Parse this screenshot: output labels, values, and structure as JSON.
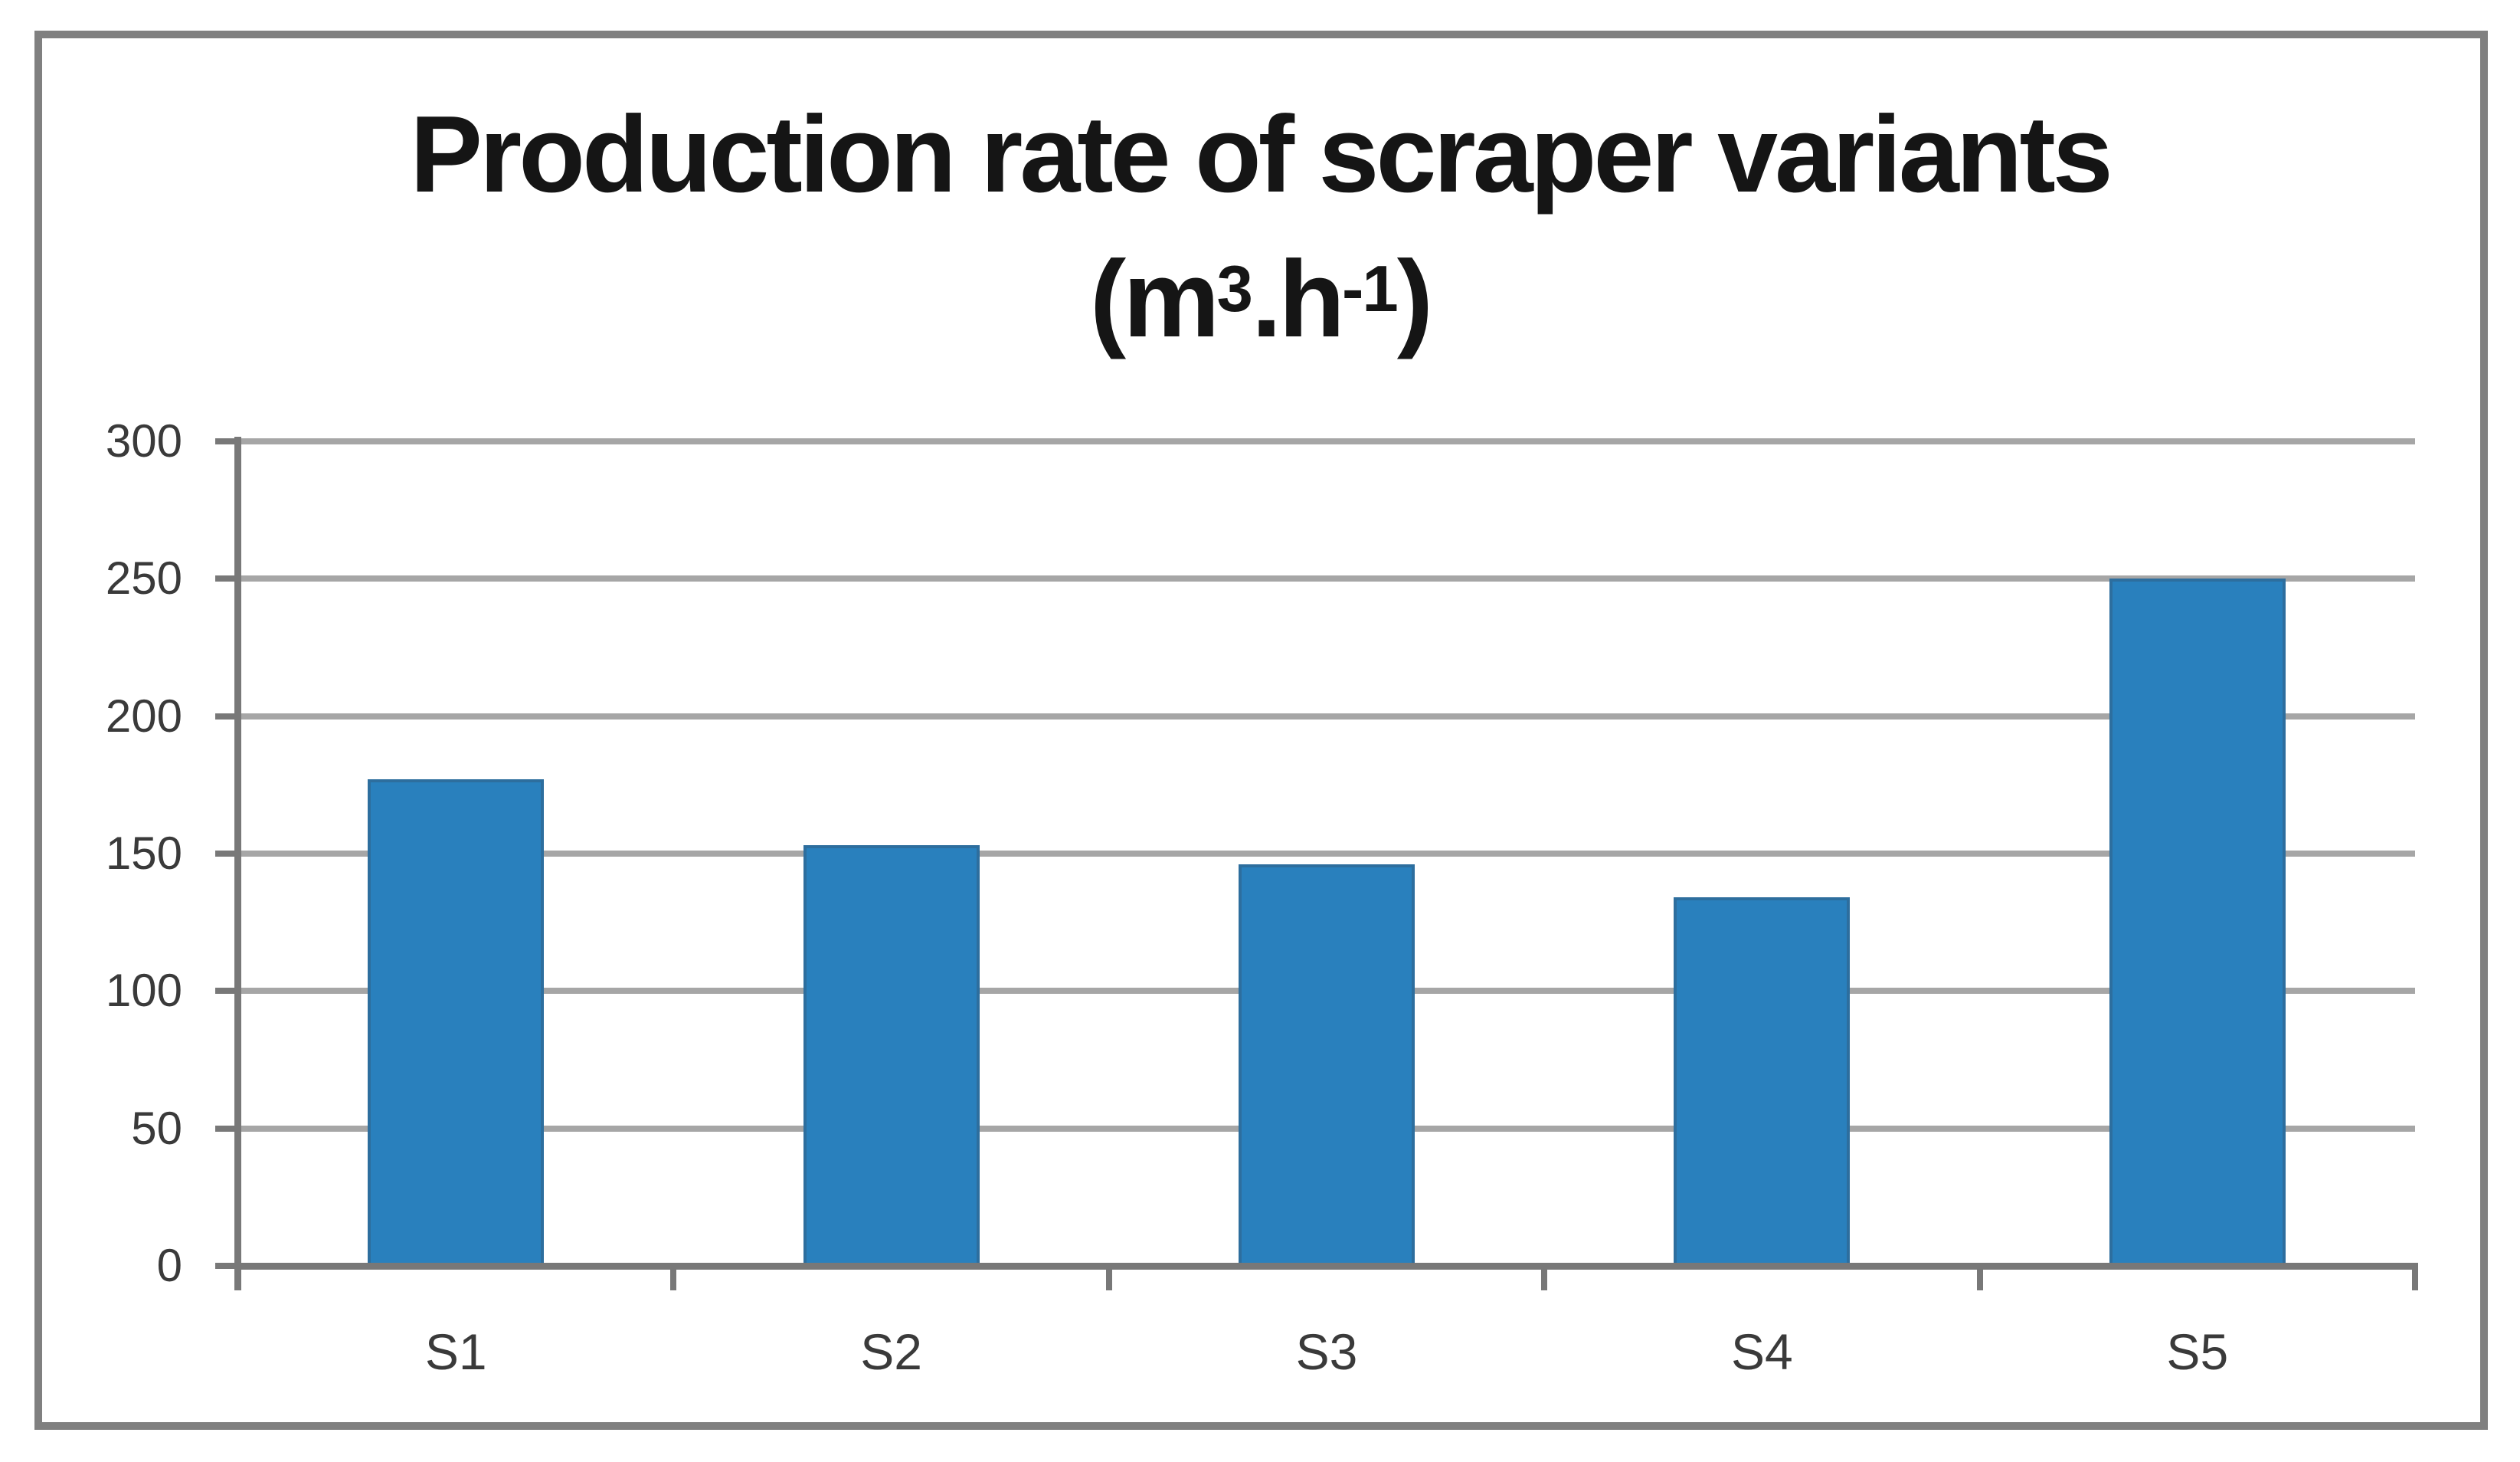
{
  "chart_data": {
    "type": "bar",
    "title": "Production rate of scraper variants (m³.h⁻¹)",
    "title_line1": "Production rate of scraper variants",
    "unit_parts": {
      "open": "(m",
      "sup_exponent": "3",
      "dot_h": ".h",
      "sup_exponent2": "-1",
      "close": ")"
    },
    "categories": [
      "S1",
      "S2",
      "S3",
      "S4",
      "S5"
    ],
    "values": [
      177,
      153,
      146,
      134,
      250
    ],
    "series": [
      {
        "name": "Production rate",
        "values": [
          177,
          153,
          146,
          134,
          250
        ]
      }
    ],
    "xlabel": "",
    "ylabel": "",
    "ylim": [
      0,
      300
    ],
    "ytick_step": 50,
    "yticks": [
      0,
      50,
      100,
      150,
      200,
      250,
      300
    ],
    "grid": true,
    "legend_position": "none",
    "colors": {
      "bar_fill": "#2980BD",
      "bar_edge": "#2D6E9E",
      "gridline": "#A6A6A6",
      "axis": "#787878",
      "tick_label": "#3A3A3A",
      "title": "#151515",
      "frame_border": "#808080",
      "background": "#FFFFFF"
    }
  }
}
